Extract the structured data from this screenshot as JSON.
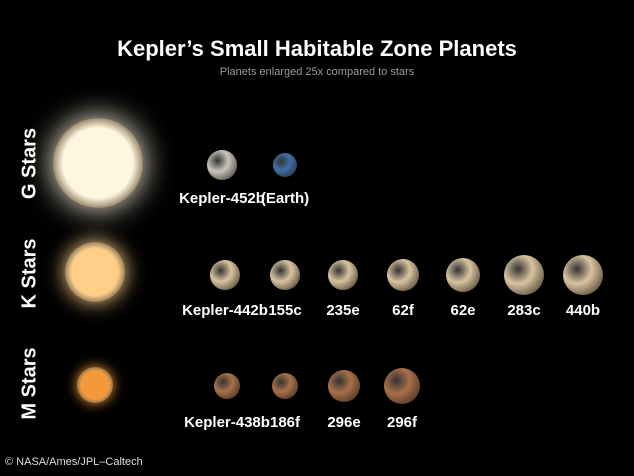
{
  "title": "Kepler’s Small Habitable Zone Planets",
  "subtitle": "Planets enlarged 25x compared to stars",
  "rows": [
    {
      "label": "G Stars",
      "star_color": "#fff6e0",
      "planets": [
        "Kepler-452b",
        "(Earth)"
      ]
    },
    {
      "label": "K Stars",
      "star_color": "#ffcf8a",
      "planets": [
        "Kepler-442b",
        "155c",
        "235e",
        "62f",
        "62e",
        "283c",
        "440b"
      ]
    },
    {
      "label": "M Stars",
      "star_color": "#f29a3a",
      "planets": [
        "Kepler-438b",
        "186f",
        "296e",
        "296f"
      ]
    }
  ],
  "credit": "© NASA/Ames/JPL–Caltech"
}
